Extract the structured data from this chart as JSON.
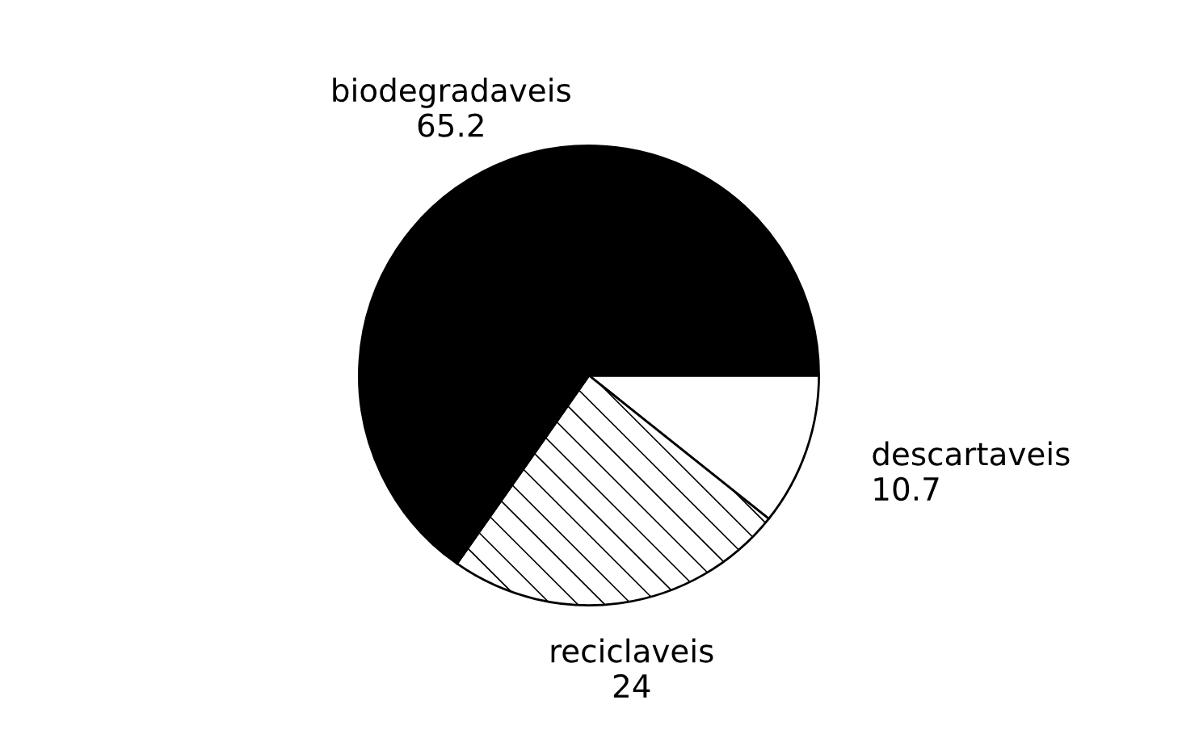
{
  "chart_data": {
    "type": "pie",
    "categories": [
      "descartaveis",
      "reciclaveis",
      "biodegradaveis"
    ],
    "values": [
      10.7,
      24,
      65.2
    ],
    "colors": [
      "#ffffff",
      "#ffffff",
      "#000000"
    ],
    "data_labels": true
  }
}
